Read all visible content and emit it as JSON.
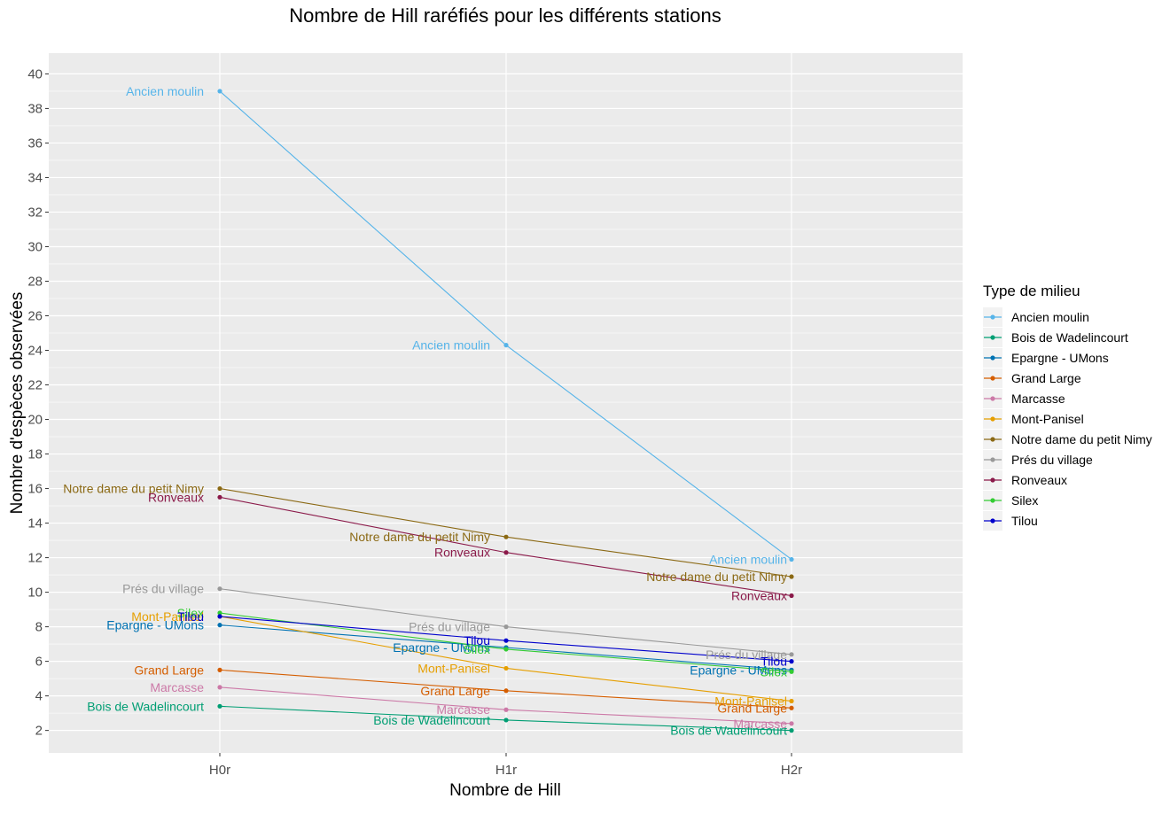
{
  "chart_data": {
    "type": "line",
    "title": "Nombre de Hill raréfiés pour les différents stations",
    "xlabel": "Nombre de Hill",
    "ylabel": "Nombre d'espèces observées",
    "categories": [
      "H0r",
      "H1r",
      "H2r"
    ],
    "ylim": [
      0.7,
      41.2
    ],
    "yticks": [
      "2",
      "4",
      "6",
      "8",
      "10",
      "12",
      "14",
      "16",
      "18",
      "20",
      "22",
      "24",
      "26",
      "28",
      "30",
      "32",
      "34",
      "36",
      "38",
      "40"
    ],
    "grid": true,
    "legend": {
      "title": "Type de milieu",
      "position": "right"
    },
    "series": [
      {
        "name": "Ancien moulin",
        "color": "#56B4E9",
        "values": [
          39.0,
          24.3,
          11.9
        ]
      },
      {
        "name": "Bois de Wadelincourt",
        "color": "#009E73",
        "values": [
          3.4,
          2.6,
          2.0
        ]
      },
      {
        "name": "Epargne - UMons",
        "color": "#0072B2",
        "values": [
          8.1,
          6.8,
          5.5
        ]
      },
      {
        "name": "Grand Large",
        "color": "#D55E00",
        "values": [
          5.5,
          4.3,
          3.3
        ]
      },
      {
        "name": "Marcasse",
        "color": "#CC79A7",
        "values": [
          4.5,
          3.2,
          2.4
        ]
      },
      {
        "name": "Mont-Panisel",
        "color": "#E69F00",
        "values": [
          8.6,
          5.6,
          3.7
        ]
      },
      {
        "name": "Notre dame du petit Nimy",
        "color": "#8B6914",
        "values": [
          16.0,
          13.2,
          10.9
        ]
      },
      {
        "name": "Prés du village",
        "color": "#999999",
        "values": [
          10.2,
          8.0,
          6.4
        ]
      },
      {
        "name": "Ronveaux",
        "color": "#8B1A4A",
        "values": [
          15.5,
          12.3,
          9.8
        ]
      },
      {
        "name": "Silex",
        "color": "#33CC33",
        "values": [
          8.8,
          6.7,
          5.4
        ]
      },
      {
        "name": "Tilou",
        "color": "#0000CC",
        "values": [
          8.6,
          7.2,
          6.0
        ]
      }
    ]
  }
}
